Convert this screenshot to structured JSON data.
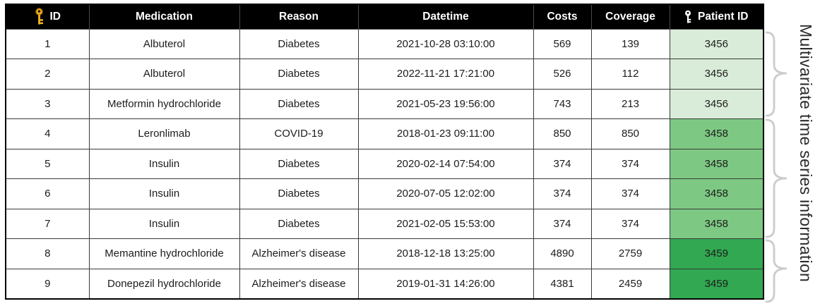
{
  "table": {
    "columns": [
      {
        "label": "ID",
        "icon": "primary-key-icon"
      },
      {
        "label": "Medication"
      },
      {
        "label": "Reason"
      },
      {
        "label": "Datetime"
      },
      {
        "label": "Costs"
      },
      {
        "label": "Coverage"
      },
      {
        "label": "Patient ID",
        "icon": "foreign-key-icon"
      }
    ],
    "rows": [
      {
        "id": "1",
        "medication": "Albuterol",
        "reason": "Diabetes",
        "datetime": "2021-10-28 03:10:00",
        "costs": "569",
        "coverage": "139",
        "patient_id": "3456"
      },
      {
        "id": "2",
        "medication": "Albuterol",
        "reason": "Diabetes",
        "datetime": "2022-11-21 17:21:00",
        "costs": "526",
        "coverage": "112",
        "patient_id": "3456"
      },
      {
        "id": "3",
        "medication": "Metformin hydrochloride",
        "reason": "Diabetes",
        "datetime": "2021-05-23 19:56:00",
        "costs": "743",
        "coverage": "213",
        "patient_id": "3456"
      },
      {
        "id": "4",
        "medication": "Leronlimab",
        "reason": "COVID-19",
        "datetime": "2018-01-23 09:11:00",
        "costs": "850",
        "coverage": "850",
        "patient_id": "3458"
      },
      {
        "id": "5",
        "medication": "Insulin",
        "reason": "Diabetes",
        "datetime": "2020-02-14 07:54:00",
        "costs": "374",
        "coverage": "374",
        "patient_id": "3458"
      },
      {
        "id": "6",
        "medication": "Insulin",
        "reason": "Diabetes",
        "datetime": "2020-07-05 12:02:00",
        "costs": "374",
        "coverage": "374",
        "patient_id": "3458"
      },
      {
        "id": "7",
        "medication": "Insulin",
        "reason": "Diabetes",
        "datetime": "2021-02-05 15:53:00",
        "costs": "374",
        "coverage": "374",
        "patient_id": "3458"
      },
      {
        "id": "8",
        "medication": "Memantine hydrochloride",
        "reason": "Alzheimer's disease",
        "datetime": "2018-12-18 13:25:00",
        "costs": "4890",
        "coverage": "2759",
        "patient_id": "3459"
      },
      {
        "id": "9",
        "medication": "Donepezil hydrochloride",
        "reason": "Alzheimer's disease",
        "datetime": "2019-01-31 14:26:00",
        "costs": "4381",
        "coverage": "2459",
        "patient_id": "3459"
      }
    ]
  },
  "patient_groups": [
    {
      "patient_id": "3456",
      "row_ids": [
        "1",
        "2",
        "3"
      ],
      "color": "#d9ecd9"
    },
    {
      "patient_id": "3458",
      "row_ids": [
        "4",
        "5",
        "6",
        "7"
      ],
      "color": "#7dc983"
    },
    {
      "patient_id": "3459",
      "row_ids": [
        "8",
        "9"
      ],
      "color": "#31a851"
    }
  ],
  "annotation": {
    "label": "Multivariate time series information"
  },
  "colors": {
    "header_bg": "#000000",
    "header_text": "#ffffff",
    "grid_line": "#3a3a3a",
    "outer_border": "#000000",
    "brace": "#cccccc",
    "primary_key_gold": "#f2b01e",
    "foreign_key_white": "#ffffff",
    "body_text": "#1c1c1c"
  }
}
